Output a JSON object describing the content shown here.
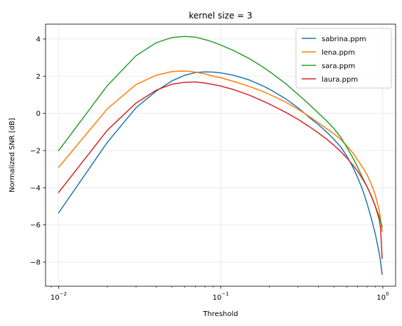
{
  "chart_data": {
    "type": "line",
    "title": "kernel size = 3",
    "xlabel": "Threshold",
    "ylabel": "Normalized SNR [dB]",
    "xscale": "log",
    "xlim": [
      0.0083,
      1.2
    ],
    "ylim": [
      -9.3,
      4.8
    ],
    "grid": true,
    "legend_position": "top-right",
    "x_ticks": [
      {
        "value": 0.01,
        "base": "10",
        "exp": "−2"
      },
      {
        "value": 0.1,
        "base": "10",
        "exp": "−1"
      },
      {
        "value": 1,
        "base": "10",
        "exp": "0"
      }
    ],
    "y_ticks": [
      {
        "value": 4,
        "label": "4"
      },
      {
        "value": 2,
        "label": "2"
      },
      {
        "value": 0,
        "label": "0"
      },
      {
        "value": -2,
        "label": "−2"
      },
      {
        "value": -4,
        "label": "−4"
      },
      {
        "value": -6,
        "label": "−6"
      },
      {
        "value": -8,
        "label": "−8"
      }
    ],
    "x": [
      0.01,
      0.02,
      0.03,
      0.04,
      0.05,
      0.06,
      0.07,
      0.08,
      0.09,
      0.1,
      0.12,
      0.15,
      0.18,
      0.2,
      0.25,
      0.3,
      0.35,
      0.4,
      0.45,
      0.5,
      0.55,
      0.6,
      0.65,
      0.7,
      0.75,
      0.8,
      0.85,
      0.9,
      0.95,
      0.97,
      0.99
    ],
    "series": [
      {
        "name": "sabrina.ppm",
        "color": "#1f77b4",
        "values": [
          -5.35,
          -1.55,
          0.3,
          1.2,
          1.75,
          2.05,
          2.2,
          2.23,
          2.22,
          2.18,
          2.05,
          1.8,
          1.5,
          1.3,
          0.8,
          0.3,
          -0.2,
          -0.6,
          -1.0,
          -1.4,
          -1.8,
          -2.3,
          -2.85,
          -3.45,
          -4.1,
          -4.85,
          -5.65,
          -6.5,
          -7.5,
          -8.0,
          -8.65
        ]
      },
      {
        "name": "lena.ppm",
        "color": "#ff7f0e",
        "values": [
          -2.9,
          0.25,
          1.55,
          2.05,
          2.25,
          2.28,
          2.22,
          2.12,
          2.0,
          1.92,
          1.72,
          1.45,
          1.2,
          1.02,
          0.62,
          0.22,
          -0.15,
          -0.5,
          -0.82,
          -1.1,
          -1.4,
          -1.75,
          -2.1,
          -2.5,
          -2.9,
          -3.3,
          -3.8,
          -4.4,
          -5.2,
          -5.7,
          -6.35
        ]
      },
      {
        "name": "sara.ppm",
        "color": "#2ca02c",
        "values": [
          -2.0,
          1.5,
          3.1,
          3.8,
          4.08,
          4.14,
          4.1,
          3.97,
          3.83,
          3.68,
          3.38,
          2.95,
          2.52,
          2.25,
          1.62,
          1.02,
          0.5,
          0.02,
          -0.4,
          -0.82,
          -1.28,
          -1.82,
          -2.35,
          -2.9,
          -3.45,
          -3.95,
          -4.45,
          -5.0,
          -5.55,
          -5.8,
          -6.1
        ]
      },
      {
        "name": "laura.ppm",
        "color": "#d62728",
        "values": [
          -4.25,
          -0.9,
          0.55,
          1.25,
          1.57,
          1.67,
          1.69,
          1.63,
          1.55,
          1.47,
          1.28,
          0.98,
          0.68,
          0.5,
          0.07,
          -0.32,
          -0.7,
          -1.05,
          -1.38,
          -1.72,
          -2.05,
          -2.4,
          -2.75,
          -3.12,
          -3.52,
          -3.95,
          -4.45,
          -5.0,
          -5.7,
          -6.2,
          -7.8
        ]
      }
    ]
  }
}
